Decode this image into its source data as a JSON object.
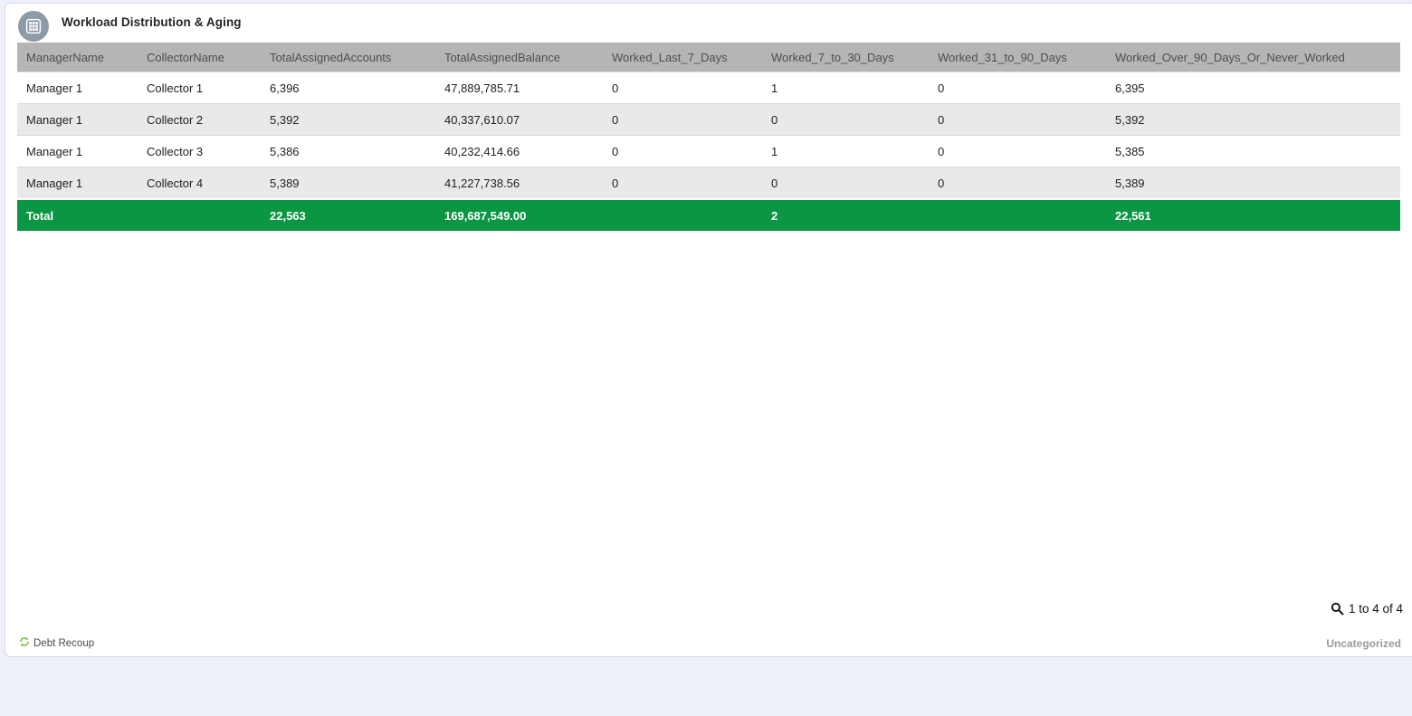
{
  "panel": {
    "title": "Workload Distribution & Aging",
    "icon": "table-grid-icon"
  },
  "table": {
    "columns": [
      "ManagerName",
      "CollectorName",
      "TotalAssignedAccounts",
      "TotalAssignedBalance",
      "Worked_Last_7_Days",
      "Worked_7_to_30_Days",
      "Worked_31_to_90_Days",
      "Worked_Over_90_Days_Or_Never_Worked"
    ],
    "rows": [
      [
        "Manager 1",
        "Collector 1",
        "6,396",
        "47,889,785.71",
        "0",
        "1",
        "0",
        "6,395"
      ],
      [
        "Manager 1",
        "Collector 2",
        "5,392",
        "40,337,610.07",
        "0",
        "0",
        "0",
        "5,392"
      ],
      [
        "Manager 1",
        "Collector 3",
        "5,386",
        "40,232,414.66",
        "0",
        "1",
        "0",
        "5,385"
      ],
      [
        "Manager 1",
        "Collector 4",
        "5,389",
        "41,227,738.56",
        "0",
        "0",
        "0",
        "5,389"
      ]
    ],
    "total_row": [
      "Total",
      "",
      "22,563",
      "169,687,549.00",
      "",
      "2",
      "",
      "22,561"
    ]
  },
  "footer": {
    "source_label": "Debt Recoup",
    "source_icon": "refresh-icon",
    "pagination": "1 to 4 of 4",
    "pagination_icon": "search-icon",
    "category": "Uncategorized"
  },
  "colors": {
    "total_row_green": "#0a9642",
    "header_gray": "#b5b5b5",
    "alt_row_gray": "#e9e9e9",
    "page_background": "#eef0fa",
    "brand_green": "#8bc34a",
    "icon_circle_gray": "#8d9aa8"
  }
}
